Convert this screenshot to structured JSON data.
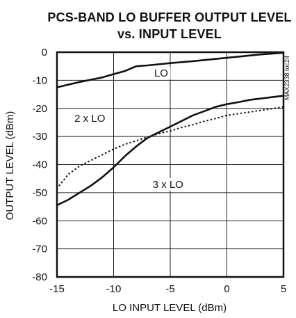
{
  "chart_data": {
    "type": "line",
    "title_line1": "PCS-BAND LO BUFFER OUTPUT LEVEL",
    "title_line2": "vs. INPUT LEVEL",
    "xlabel": "LO INPUT LEVEL (dBm)",
    "ylabel": "OUTPUT LEVEL (dBm)",
    "xlim": [
      -15,
      5
    ],
    "ylim": [
      -80,
      0
    ],
    "x_ticks": [
      "-15",
      "-10",
      "-5",
      "0",
      "5"
    ],
    "y_ticks": [
      "0",
      "-10",
      "-20",
      "-30",
      "-40",
      "-50",
      "-60",
      "-70",
      "-80"
    ],
    "grid": true,
    "code_label": "MAX2338 toc24",
    "series": [
      {
        "name": "LO",
        "style": "solid",
        "x": [
          -15,
          -13,
          -11,
          -10,
          -9,
          -8,
          -7,
          -5,
          -3,
          0,
          3,
          5
        ],
        "y": [
          -12.5,
          -10.6,
          -9,
          -7.8,
          -6.7,
          -5,
          -4.7,
          -3.9,
          -3.2,
          -2,
          -0.8,
          -0.2
        ]
      },
      {
        "name": "2 x LO",
        "style": "dotted",
        "x": [
          -15,
          -14,
          -13,
          -12,
          -11,
          -10,
          -9,
          -8,
          -7,
          -6,
          -5,
          -4,
          -3,
          -2,
          -1,
          0,
          2,
          4,
          5
        ],
        "y": [
          -48.5,
          -43.5,
          -40.5,
          -38.5,
          -36.5,
          -34.5,
          -32.8,
          -31.5,
          -30.2,
          -29,
          -28,
          -26.8,
          -25.8,
          -24.6,
          -23.6,
          -22.5,
          -21.3,
          -20.1,
          -19.5
        ]
      },
      {
        "name": "3 x LO",
        "style": "solid",
        "x": [
          -15,
          -14,
          -13,
          -12,
          -11,
          -10,
          -9,
          -8,
          -7,
          -6,
          -5,
          -4,
          -3,
          -2,
          -1,
          0,
          1,
          2,
          3,
          4,
          5
        ],
        "y": [
          -54.5,
          -52.5,
          -50,
          -47.5,
          -44.5,
          -41,
          -37,
          -33.5,
          -30.5,
          -28.5,
          -26.5,
          -24.5,
          -22.5,
          -21,
          -19.5,
          -18.5,
          -17.8,
          -17,
          -16.5,
          -16,
          -15.5
        ]
      }
    ],
    "series_labels": [
      {
        "text": "LO",
        "x": -5.8,
        "y": -8.2
      },
      {
        "text": "2 x LO",
        "x": -12.1,
        "y": -24.3
      },
      {
        "text": "3 x LO",
        "x": -5.2,
        "y": -47.8
      }
    ]
  }
}
